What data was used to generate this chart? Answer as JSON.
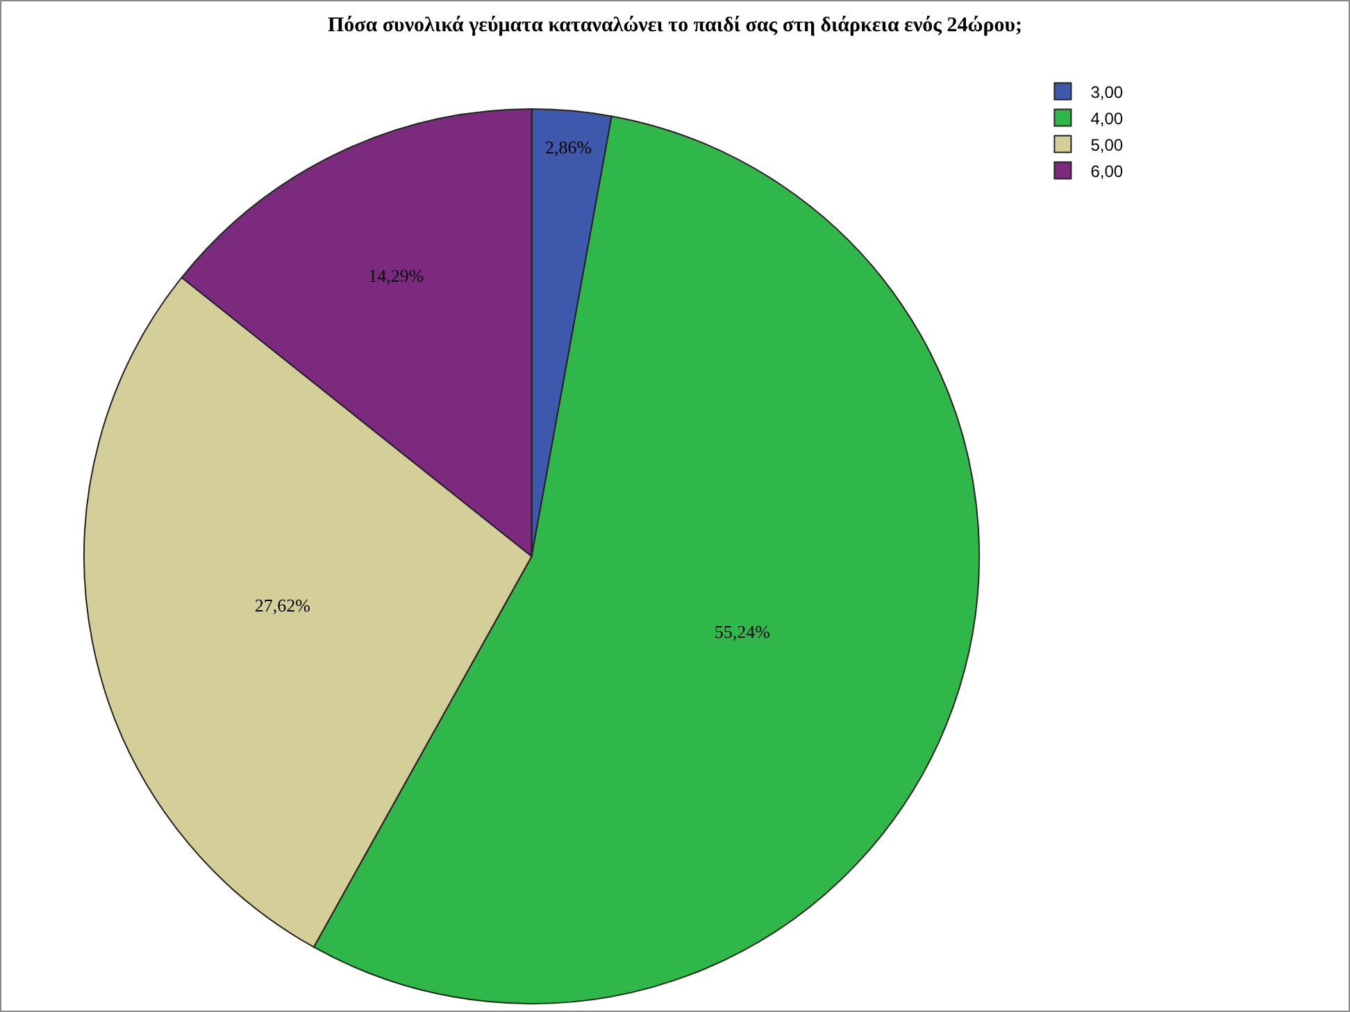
{
  "chart_data": {
    "type": "pie",
    "title": "Πόσα συνολικά γεύματα καταναλώνει το παιδί σας στη διάρκεια ενός 24ώρου;",
    "categories": [
      "3,00",
      "4,00",
      "5,00",
      "6,00"
    ],
    "values": [
      2.86,
      55.24,
      27.62,
      14.29
    ],
    "value_labels": [
      "2,86%",
      "55,24%",
      "27,62%",
      "14,29%"
    ],
    "colors": [
      "#3e58ac",
      "#30b74a",
      "#d4cf98",
      "#7b2a7e"
    ],
    "legend": "top right"
  }
}
